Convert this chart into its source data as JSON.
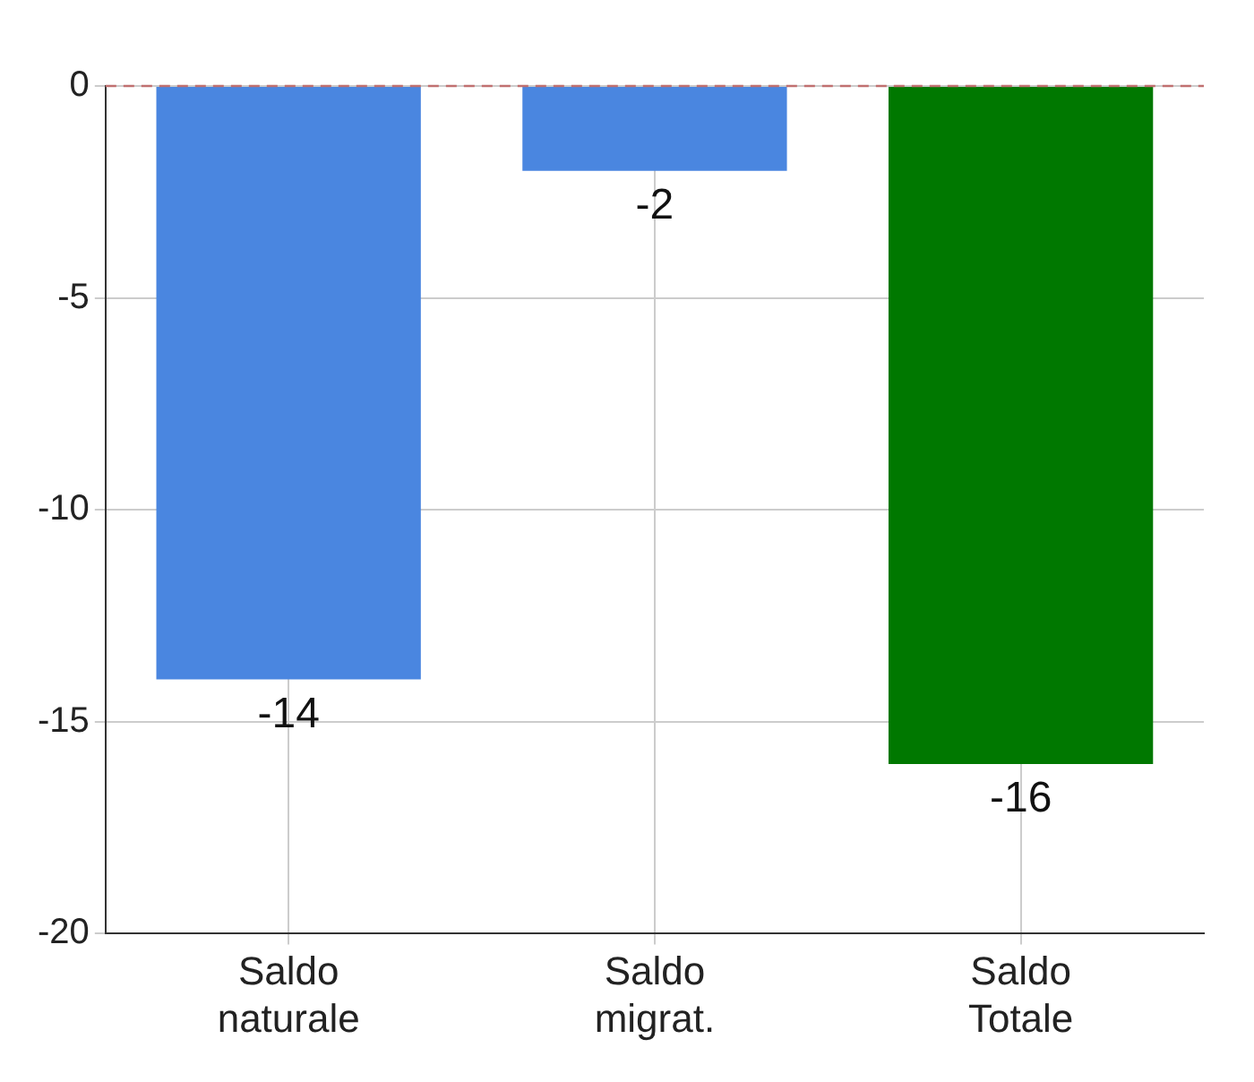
{
  "chart_data": {
    "type": "bar",
    "categories": [
      "Saldo naturale",
      "Saldo migrat.",
      "Saldo Totale"
    ],
    "values": [
      -14,
      -2,
      -16
    ],
    "colors": [
      "#4a86e0",
      "#4a86e0",
      "#007800"
    ],
    "ylim": [
      -20,
      0
    ],
    "yticks": [
      0,
      -5,
      -10,
      -15,
      -20
    ],
    "grid": true,
    "data_labels": true,
    "ref_lines": [
      {
        "axis": "y",
        "value": 0,
        "color": "#c07070",
        "line_style": "dashed"
      }
    ]
  }
}
